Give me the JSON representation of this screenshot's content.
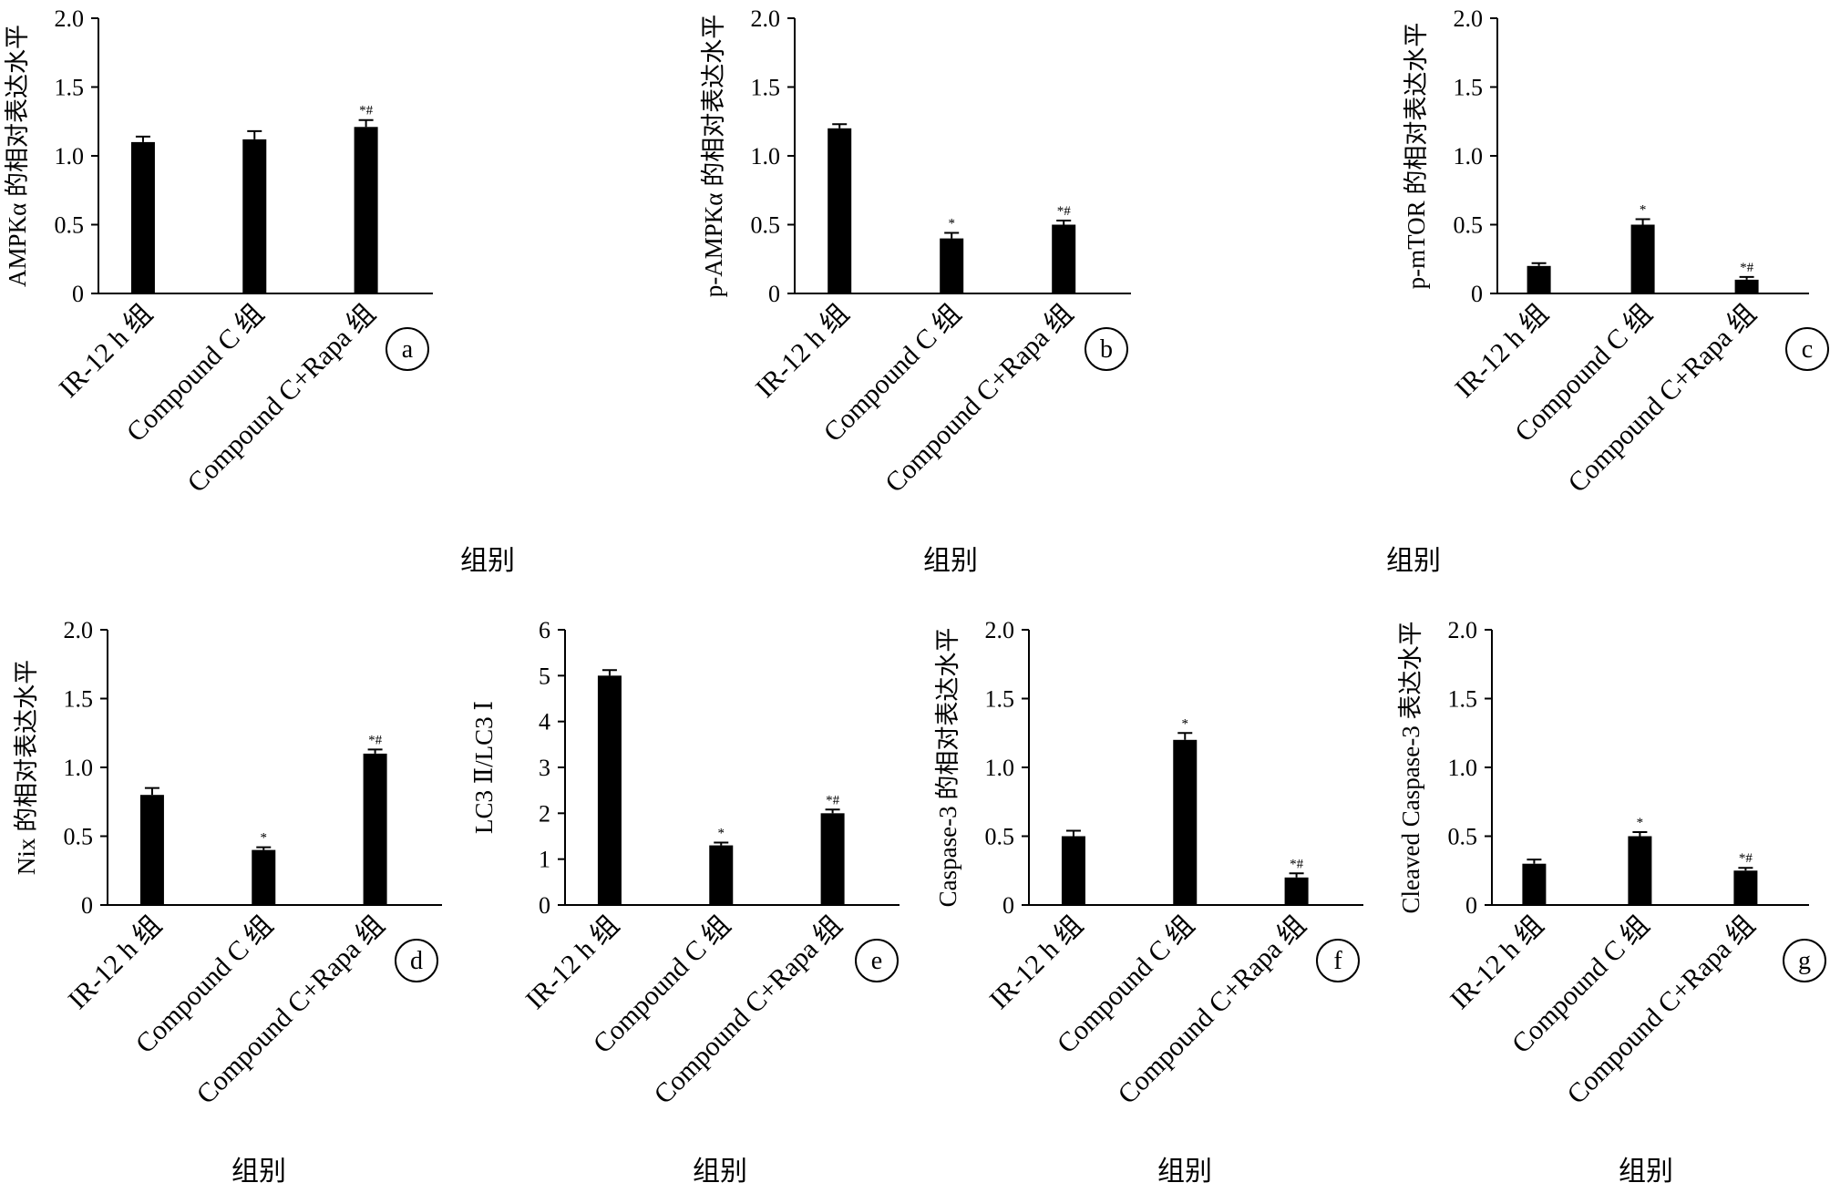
{
  "colors": {
    "bar": "#000000",
    "axis": "#000000",
    "background": "#ffffff"
  },
  "chart_data": [
    {
      "panel": "a",
      "type": "bar",
      "categories": [
        "IR-12 h 组",
        "Compound C 组",
        "Compound C+Rapa 组"
      ],
      "values": [
        1.1,
        1.12,
        1.21
      ],
      "errors": [
        0.04,
        0.06,
        0.05
      ],
      "significance": [
        "",
        "",
        "*#"
      ],
      "ylabel": "AMPKα 的相对表达水平",
      "xlabel": "组别",
      "ylim": [
        0,
        2.0
      ],
      "yticks": [
        "0",
        "0.5",
        "1.0",
        "1.5",
        "2.0"
      ]
    },
    {
      "panel": "b",
      "type": "bar",
      "categories": [
        "IR-12 h 组",
        "Compound C 组",
        "Compound C+Rapa 组"
      ],
      "values": [
        1.2,
        0.4,
        0.5
      ],
      "errors": [
        0.03,
        0.04,
        0.03
      ],
      "significance": [
        "",
        "*",
        "*#"
      ],
      "ylabel": "p-AMPKα 的相对表达水平",
      "xlabel": "组别",
      "ylim": [
        0,
        2.0
      ],
      "yticks": [
        "0",
        "0.5",
        "1.0",
        "1.5",
        "2.0"
      ]
    },
    {
      "panel": "c",
      "type": "bar",
      "categories": [
        "IR-12 h 组",
        "Compound C 组",
        "Compound C+Rapa 组"
      ],
      "values": [
        0.2,
        0.5,
        0.1
      ],
      "errors": [
        0.02,
        0.04,
        0.02
      ],
      "significance": [
        "",
        "*",
        "*#"
      ],
      "ylabel": "p-mTOR 的相对表达水平",
      "xlabel": "组别",
      "ylim": [
        0,
        2.0
      ],
      "yticks": [
        "0",
        "0.5",
        "1.0",
        "1.5",
        "2.0"
      ]
    },
    {
      "panel": "d",
      "type": "bar",
      "categories": [
        "IR-12 h 组",
        "Compound C 组",
        "Compound C+Rapa 组"
      ],
      "values": [
        0.8,
        0.4,
        1.1
      ],
      "errors": [
        0.05,
        0.02,
        0.03
      ],
      "significance": [
        "",
        "*",
        "*#"
      ],
      "ylabel": "Nix 的相对表达水平",
      "xlabel": "组别",
      "ylim": [
        0,
        2.0
      ],
      "yticks": [
        "0",
        "0.5",
        "1.0",
        "1.5",
        "2.0"
      ]
    },
    {
      "panel": "e",
      "type": "bar",
      "categories": [
        "IR-12 h 组",
        "Compound C 组",
        "Compound C+Rapa 组"
      ],
      "values": [
        5.0,
        1.3,
        2.0
      ],
      "errors": [
        0.12,
        0.06,
        0.08
      ],
      "significance": [
        "",
        "*",
        "*#"
      ],
      "ylabel": "LC3 Ⅱ/LC3 Ⅰ",
      "xlabel": "组别",
      "ylim": [
        0,
        6
      ],
      "yticks": [
        "0",
        "1",
        "2",
        "3",
        "4",
        "5",
        "6"
      ]
    },
    {
      "panel": "f",
      "type": "bar",
      "categories": [
        "IR-12 h 组",
        "Compound C 组",
        "Compound C+Rapa 组"
      ],
      "values": [
        0.5,
        1.2,
        0.2
      ],
      "errors": [
        0.04,
        0.05,
        0.03
      ],
      "significance": [
        "",
        "*",
        "*#"
      ],
      "ylabel": "Caspase-3 的相对表达水平",
      "xlabel": "组别",
      "ylim": [
        0,
        2.0
      ],
      "yticks": [
        "0",
        "0.5",
        "1.0",
        "1.5",
        "2.0"
      ]
    },
    {
      "panel": "g",
      "type": "bar",
      "categories": [
        "IR-12 h 组",
        "Compound C 组",
        "Compound C+Rapa 组"
      ],
      "values": [
        0.3,
        0.5,
        0.25
      ],
      "errors": [
        0.03,
        0.03,
        0.02
      ],
      "significance": [
        "",
        "*",
        "*#"
      ],
      "ylabel": "Cleaved Caspase-3 表达水平",
      "xlabel": "组别",
      "ylim": [
        0,
        2.0
      ],
      "yticks": [
        "0",
        "0.5",
        "1.0",
        "1.5",
        "2.0"
      ]
    }
  ]
}
